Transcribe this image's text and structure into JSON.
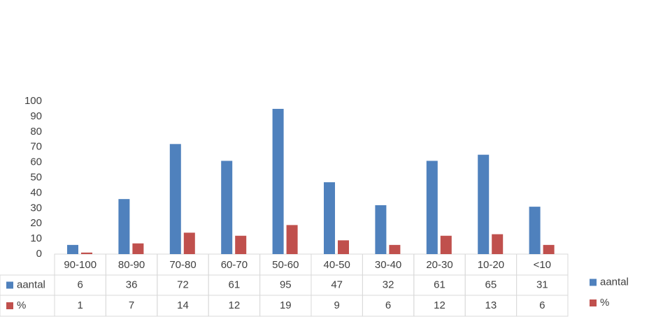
{
  "chart_data": {
    "type": "bar",
    "categories": [
      "90-100",
      "80-90",
      "70-80",
      "60-70",
      "50-60",
      "40-50",
      "30-40",
      "20-30",
      "10-20",
      "<10"
    ],
    "series": [
      {
        "name": "aantal",
        "color": "#4f81bd",
        "values": [
          6,
          36,
          72,
          61,
          95,
          47,
          32,
          61,
          65,
          31
        ]
      },
      {
        "name": "%",
        "color": "#c0504d",
        "values": [
          1,
          7,
          14,
          12,
          19,
          9,
          6,
          12,
          13,
          6
        ]
      }
    ],
    "ylim": [
      0,
      100
    ],
    "yticks": [
      0,
      10,
      20,
      30,
      40,
      50,
      60,
      70,
      80,
      90,
      100
    ],
    "grid": false
  }
}
